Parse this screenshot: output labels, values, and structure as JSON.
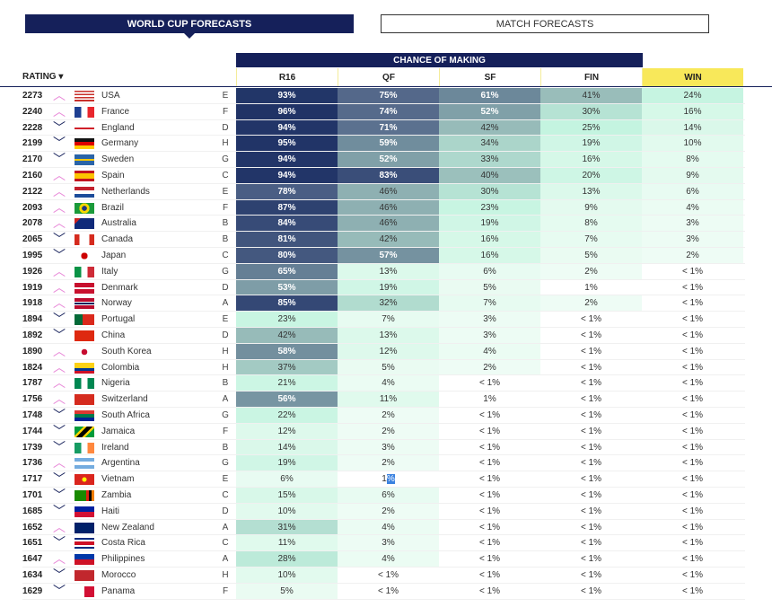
{
  "tabs": {
    "world_cup": "WORLD CUP FORECASTS",
    "match": "MATCH FORECASTS"
  },
  "header": {
    "chance": "CHANCE OF MAKING",
    "rating": "RATING ▾",
    "cols": [
      "R16",
      "QF",
      "SF",
      "FIN",
      "WIN"
    ]
  },
  "colors": {
    "navy": "#15205a",
    "win_header": "#f8e85a",
    "up_arrow": "#e888d8",
    "selection": "#3b82e0"
  },
  "teams": [
    {
      "rating": "2273",
      "trend": "up",
      "flag": "usa",
      "name": "USA",
      "group": "E",
      "p": [
        "93%",
        "75%",
        "61%",
        "41%",
        "24%"
      ]
    },
    {
      "rating": "2240",
      "trend": "up",
      "flag": "france",
      "name": "France",
      "group": "F",
      "p": [
        "96%",
        "74%",
        "52%",
        "30%",
        "16%"
      ]
    },
    {
      "rating": "2228",
      "trend": "down",
      "flag": "england",
      "name": "England",
      "group": "D",
      "p": [
        "94%",
        "71%",
        "42%",
        "25%",
        "14%"
      ]
    },
    {
      "rating": "2199",
      "trend": "down",
      "flag": "germany",
      "name": "Germany",
      "group": "H",
      "p": [
        "95%",
        "59%",
        "34%",
        "19%",
        "10%"
      ]
    },
    {
      "rating": "2170",
      "trend": "down",
      "flag": "sweden",
      "name": "Sweden",
      "group": "G",
      "p": [
        "94%",
        "52%",
        "33%",
        "16%",
        "8%"
      ]
    },
    {
      "rating": "2160",
      "trend": "up",
      "flag": "spain",
      "name": "Spain",
      "group": "C",
      "p": [
        "94%",
        "83%",
        "40%",
        "20%",
        "9%"
      ]
    },
    {
      "rating": "2122",
      "trend": "up",
      "flag": "netherlands",
      "name": "Netherlands",
      "group": "E",
      "p": [
        "78%",
        "46%",
        "30%",
        "13%",
        "6%"
      ]
    },
    {
      "rating": "2093",
      "trend": "up",
      "flag": "brazil",
      "name": "Brazil",
      "group": "F",
      "p": [
        "87%",
        "46%",
        "23%",
        "9%",
        "4%"
      ]
    },
    {
      "rating": "2078",
      "trend": "up",
      "flag": "australia",
      "name": "Australia",
      "group": "B",
      "p": [
        "84%",
        "46%",
        "19%",
        "8%",
        "3%"
      ]
    },
    {
      "rating": "2065",
      "trend": "down",
      "flag": "canada",
      "name": "Canada",
      "group": "B",
      "p": [
        "81%",
        "42%",
        "16%",
        "7%",
        "3%"
      ]
    },
    {
      "rating": "1995",
      "trend": "down",
      "flag": "japan",
      "name": "Japan",
      "group": "C",
      "p": [
        "80%",
        "57%",
        "16%",
        "5%",
        "2%"
      ]
    },
    {
      "rating": "1926",
      "trend": "up",
      "flag": "italy",
      "name": "Italy",
      "group": "G",
      "p": [
        "65%",
        "13%",
        "6%",
        "2%",
        "< 1%"
      ]
    },
    {
      "rating": "1919",
      "trend": "up",
      "flag": "denmark",
      "name": "Denmark",
      "group": "D",
      "p": [
        "53%",
        "19%",
        "5%",
        "1%",
        "< 1%"
      ]
    },
    {
      "rating": "1918",
      "trend": "up",
      "flag": "norway",
      "name": "Norway",
      "group": "A",
      "p": [
        "85%",
        "32%",
        "7%",
        "2%",
        "< 1%"
      ]
    },
    {
      "rating": "1894",
      "trend": "down",
      "flag": "portugal",
      "name": "Portugal",
      "group": "E",
      "p": [
        "23%",
        "7%",
        "3%",
        "< 1%",
        "< 1%"
      ]
    },
    {
      "rating": "1892",
      "trend": "down",
      "flag": "china",
      "name": "China",
      "group": "D",
      "p": [
        "42%",
        "13%",
        "3%",
        "< 1%",
        "< 1%"
      ]
    },
    {
      "rating": "1890",
      "trend": "up",
      "flag": "south-korea",
      "name": "South Korea",
      "group": "H",
      "p": [
        "58%",
        "12%",
        "4%",
        "< 1%",
        "< 1%"
      ]
    },
    {
      "rating": "1824",
      "trend": "up",
      "flag": "colombia",
      "name": "Colombia",
      "group": "H",
      "p": [
        "37%",
        "5%",
        "2%",
        "< 1%",
        "< 1%"
      ]
    },
    {
      "rating": "1787",
      "trend": "up",
      "flag": "nigeria",
      "name": "Nigeria",
      "group": "B",
      "p": [
        "21%",
        "4%",
        "< 1%",
        "< 1%",
        "< 1%"
      ]
    },
    {
      "rating": "1756",
      "trend": "up",
      "flag": "switzerland",
      "name": "Switzerland",
      "group": "A",
      "p": [
        "56%",
        "11%",
        "1%",
        "< 1%",
        "< 1%"
      ]
    },
    {
      "rating": "1748",
      "trend": "down",
      "flag": "south-africa",
      "name": "South Africa",
      "group": "G",
      "p": [
        "22%",
        "2%",
        "< 1%",
        "< 1%",
        "< 1%"
      ]
    },
    {
      "rating": "1744",
      "trend": "down",
      "flag": "jamaica",
      "name": "Jamaica",
      "group": "F",
      "p": [
        "12%",
        "2%",
        "< 1%",
        "< 1%",
        "< 1%"
      ]
    },
    {
      "rating": "1739",
      "trend": "down",
      "flag": "ireland",
      "name": "Ireland",
      "group": "B",
      "p": [
        "14%",
        "3%",
        "< 1%",
        "< 1%",
        "< 1%"
      ]
    },
    {
      "rating": "1736",
      "trend": "up",
      "flag": "argentina",
      "name": "Argentina",
      "group": "G",
      "p": [
        "19%",
        "2%",
        "< 1%",
        "< 1%",
        "< 1%"
      ]
    },
    {
      "rating": "1717",
      "trend": "down",
      "flag": "vietnam",
      "name": "Vietnam",
      "group": "E",
      "p": [
        "6%",
        "1%",
        "< 1%",
        "< 1%",
        "< 1%"
      ]
    },
    {
      "rating": "1701",
      "trend": "down",
      "flag": "zambia",
      "name": "Zambia",
      "group": "C",
      "p": [
        "15%",
        "6%",
        "< 1%",
        "< 1%",
        "< 1%"
      ]
    },
    {
      "rating": "1685",
      "trend": "down",
      "flag": "haiti",
      "name": "Haiti",
      "group": "D",
      "p": [
        "10%",
        "2%",
        "< 1%",
        "< 1%",
        "< 1%"
      ]
    },
    {
      "rating": "1652",
      "trend": "up",
      "flag": "new-zealand",
      "name": "New Zealand",
      "group": "A",
      "p": [
        "31%",
        "4%",
        "< 1%",
        "< 1%",
        "< 1%"
      ]
    },
    {
      "rating": "1651",
      "trend": "down",
      "flag": "costa-rica",
      "name": "Costa Rica",
      "group": "C",
      "p": [
        "11%",
        "3%",
        "< 1%",
        "< 1%",
        "< 1%"
      ]
    },
    {
      "rating": "1647",
      "trend": "up",
      "flag": "philippines",
      "name": "Philippines",
      "group": "A",
      "p": [
        "28%",
        "4%",
        "< 1%",
        "< 1%",
        "< 1%"
      ]
    },
    {
      "rating": "1634",
      "trend": "down",
      "flag": "morocco",
      "name": "Morocco",
      "group": "H",
      "p": [
        "10%",
        "< 1%",
        "< 1%",
        "< 1%",
        "< 1%"
      ]
    },
    {
      "rating": "1629",
      "trend": "down",
      "flag": "panama",
      "name": "Panama",
      "group": "F",
      "p": [
        "5%",
        "< 1%",
        "< 1%",
        "< 1%",
        "< 1%"
      ]
    }
  ]
}
